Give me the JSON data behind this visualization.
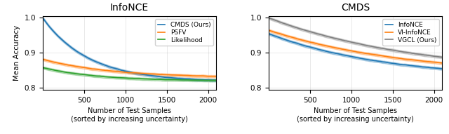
{
  "left_title": "InfoNCE",
  "right_title": "CMDS",
  "xlabel": "Number of Test Samples\n(sorted by increasing uncertainty)",
  "ylabel": "Mean Accuracy",
  "xlim": [
    0,
    2100
  ],
  "ylim_left": [
    0.795,
    1.005
  ],
  "ylim_right": [
    0.795,
    1.005
  ],
  "yticks": [
    0.8,
    0.9,
    1.0
  ],
  "xticks": [
    500,
    1000,
    1500,
    2000
  ],
  "left_colors": {
    "CMDS (Ours)": "#1f77b4",
    "PSFV": "#ff7f0e",
    "Likelihood": "#2ca02c"
  },
  "right_colors": {
    "InfoNCE": "#1f77b4",
    "VI-InfoNCE": "#ff7f0e",
    "VGCL (Ours)": "#7f7f7f"
  },
  "n_points": 500,
  "seed": 42
}
